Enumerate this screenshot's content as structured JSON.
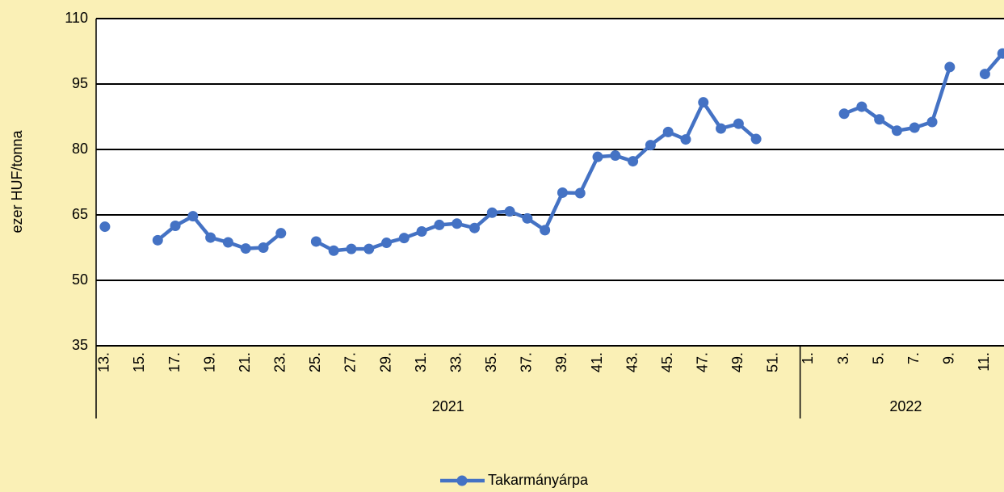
{
  "chart_data": {
    "type": "line",
    "y_label": "ezer HUF/tonna",
    "categories": [
      "13.",
      null,
      "15.",
      null,
      "17.",
      null,
      "19.",
      null,
      "21.",
      null,
      "23.",
      null,
      "25.",
      null,
      "27.",
      null,
      "29.",
      null,
      "31.",
      null,
      "33.",
      null,
      "35.",
      null,
      "37.",
      null,
      "39.",
      null,
      "41.",
      null,
      "43.",
      null,
      "45.",
      null,
      "47.",
      null,
      "49.",
      null,
      "51.",
      null,
      "1.",
      null,
      "3.",
      null,
      "5.",
      null,
      "7.",
      null,
      "9.",
      null,
      "11.",
      null
    ],
    "category_groups": [
      {
        "label": "2021",
        "span": 40
      },
      {
        "label": "2022",
        "span": 12
      }
    ],
    "series": [
      {
        "name": "Takarmányárpa",
        "color": "#4472c4",
        "values": [
          62.3,
          null,
          null,
          59.2,
          62.5,
          64.7,
          59.8,
          58.7,
          57.3,
          57.5,
          60.8,
          null,
          58.9,
          56.8,
          57.2,
          57.2,
          58.6,
          59.7,
          61.2,
          62.7,
          63.0,
          62.0,
          65.5,
          65.8,
          64.2,
          61.5,
          70.1,
          70.0,
          78.3,
          78.6,
          77.3,
          81.0,
          84.0,
          82.3,
          90.8,
          84.8,
          85.9,
          82.4,
          null,
          null,
          null,
          null,
          88.2,
          89.8,
          86.9,
          84.3,
          85.0,
          86.3,
          98.9,
          null,
          97.3,
          102.0
        ]
      }
    ],
    "ylim": [
      35,
      110
    ],
    "yticks": [
      35,
      50,
      65,
      80,
      95,
      110
    ],
    "grid": true,
    "legend": "bottom"
  }
}
